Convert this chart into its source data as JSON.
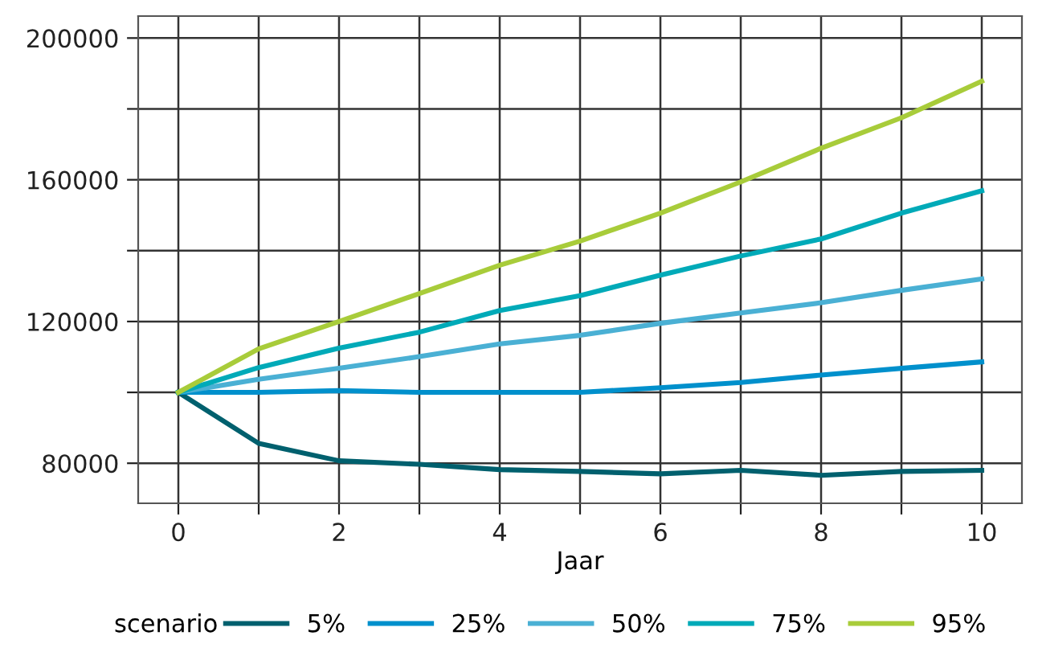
{
  "chart_data": {
    "type": "line",
    "xlabel": "Jaar",
    "legend_title": "scenario",
    "x": [
      0,
      1,
      2,
      3,
      4,
      5,
      6,
      7,
      8,
      9,
      10
    ],
    "xlim": [
      -0.5,
      10.5
    ],
    "xticks": [
      0,
      {
        "value": 1,
        "label": null
      },
      2,
      {
        "value": 3,
        "label": null
      },
      4,
      {
        "value": 5,
        "label": null
      },
      6,
      {
        "value": 7,
        "label": null
      },
      8,
      {
        "value": 9,
        "label": null
      },
      10
    ],
    "ylim": [
      68700,
      206200
    ],
    "yticks": [
      80000,
      {
        "value": 100000,
        "label": null
      },
      120000,
      {
        "value": 140000,
        "label": null
      },
      160000,
      {
        "value": 180000,
        "label": null
      },
      200000
    ],
    "grid": true,
    "legend": "bottom",
    "marker": "none",
    "line_style": "solid",
    "series": [
      {
        "name": "5%",
        "color": "#00606e",
        "values": [
          100000,
          85600,
          80700,
          79700,
          78200,
          77700,
          77000,
          78000,
          76600,
          77700,
          78000
        ]
      },
      {
        "name": "25%",
        "color": "#0090cc",
        "values": [
          100000,
          100000,
          100500,
          100000,
          100000,
          100000,
          101300,
          102800,
          104900,
          106800,
          108600
        ]
      },
      {
        "name": "50%",
        "color": "#4ab0d4",
        "values": [
          100000,
          103700,
          106800,
          110100,
          113700,
          116100,
          119500,
          122400,
          125300,
          128800,
          132000
        ]
      },
      {
        "name": "75%",
        "color": "#00aab8",
        "values": [
          100000,
          107000,
          112500,
          117000,
          123100,
          127300,
          133100,
          138500,
          143300,
          150600,
          156900
        ]
      },
      {
        "name": "95%",
        "color": "#a8cc3a",
        "values": [
          100000,
          112300,
          120000,
          127900,
          135900,
          142700,
          150600,
          159400,
          168900,
          177500,
          187800
        ]
      }
    ]
  }
}
